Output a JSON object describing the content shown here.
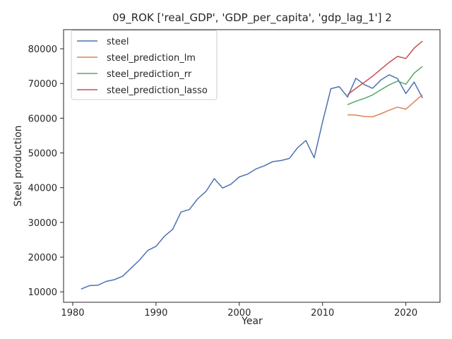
{
  "chart_data": {
    "type": "line",
    "title": "09_ROK ['real_GDP', 'GDP_per_capita', 'gdp_lag_1'] 2",
    "xlabel": "Year",
    "ylabel": "Steel production",
    "xlim": [
      1978.9,
      2024.1
    ],
    "ylim": [
      7000,
      85500
    ],
    "xticks": [
      1980,
      1990,
      2000,
      2010,
      2020
    ],
    "yticks": [
      10000,
      20000,
      30000,
      40000,
      50000,
      60000,
      70000,
      80000
    ],
    "legend_position": "upper-left",
    "grid": false,
    "series": [
      {
        "name": "steel",
        "color": "#4c72b0",
        "x": [
          1981,
          1982,
          1983,
          1984,
          1985,
          1986,
          1987,
          1988,
          1989,
          1990,
          1991,
          1992,
          1993,
          1994,
          1995,
          1996,
          1997,
          1998,
          1999,
          2000,
          2001,
          2002,
          2003,
          2004,
          2005,
          2006,
          2007,
          2008,
          2009,
          2010,
          2011,
          2012,
          2013,
          2014,
          2015,
          2016,
          2017,
          2018,
          2019,
          2020,
          2021,
          2022
        ],
        "y": [
          10800,
          11800,
          11900,
          13000,
          13500,
          14500,
          16800,
          19100,
          21900,
          23100,
          26000,
          28000,
          33000,
          33700,
          36800,
          38900,
          42600,
          39900,
          41000,
          43100,
          43900,
          45400,
          46300,
          47500,
          47800,
          48400,
          51500,
          53600,
          48600,
          58900,
          68500,
          69100,
          66100,
          71500,
          69700,
          68600,
          71000,
          72500,
          71400,
          67100,
          70400,
          65800
        ]
      },
      {
        "name": "steel_prediction_lm",
        "color": "#dd8452",
        "x": [
          2013,
          2014,
          2015,
          2016,
          2017,
          2018,
          2019,
          2020,
          2021,
          2022
        ],
        "y": [
          61000,
          60900,
          60500,
          60400,
          61300,
          62300,
          63200,
          62600,
          64700,
          66800
        ]
      },
      {
        "name": "steel_prediction_rr",
        "color": "#55a868",
        "x": [
          2013,
          2014,
          2015,
          2016,
          2017,
          2018,
          2019,
          2020,
          2021,
          2022
        ],
        "y": [
          63900,
          64900,
          65700,
          66700,
          68200,
          69600,
          70700,
          69800,
          73000,
          74900
        ]
      },
      {
        "name": "steel_prediction_lasso",
        "color": "#c44e52",
        "x": [
          2013,
          2014,
          2015,
          2016,
          2017,
          2018,
          2019,
          2020,
          2021,
          2022
        ],
        "y": [
          66800,
          68600,
          70300,
          72100,
          74100,
          76100,
          77800,
          77200,
          80200,
          82200
        ]
      }
    ]
  }
}
